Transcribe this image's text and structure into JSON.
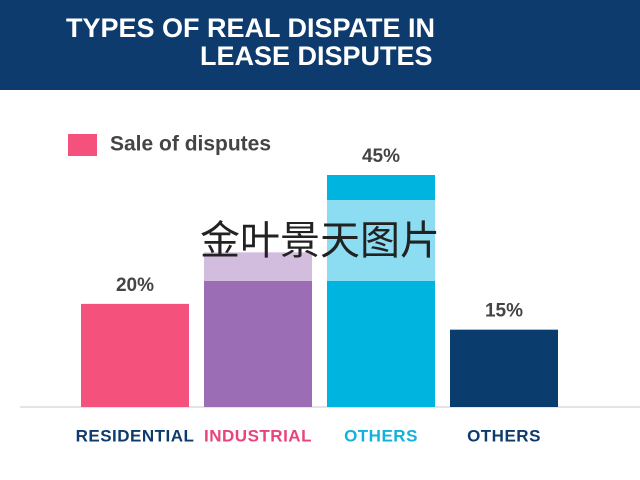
{
  "chart_data": {
    "type": "bar",
    "title": [
      "TYPES OF REAL DISPATE IN",
      "LEASE DISPUTES"
    ],
    "legend": "Sale of disputes",
    "legend_color": "#f4527c",
    "categories": [
      "RESIDENTIAL",
      "INDUSTRIAL",
      "OTHERS",
      "OTHERS"
    ],
    "category_colors": [
      "#0d3b6e",
      "#e8447a",
      "#11b1de",
      "#0d3b6e"
    ],
    "values": [
      20,
      30,
      45,
      15
    ],
    "value_labels": [
      "20%",
      null,
      "45%",
      "15%"
    ],
    "colors": [
      "#f4527c",
      "#9b6db5",
      "#00b4e0",
      "#0a3d6e"
    ],
    "watermark": "金叶景天图片"
  }
}
